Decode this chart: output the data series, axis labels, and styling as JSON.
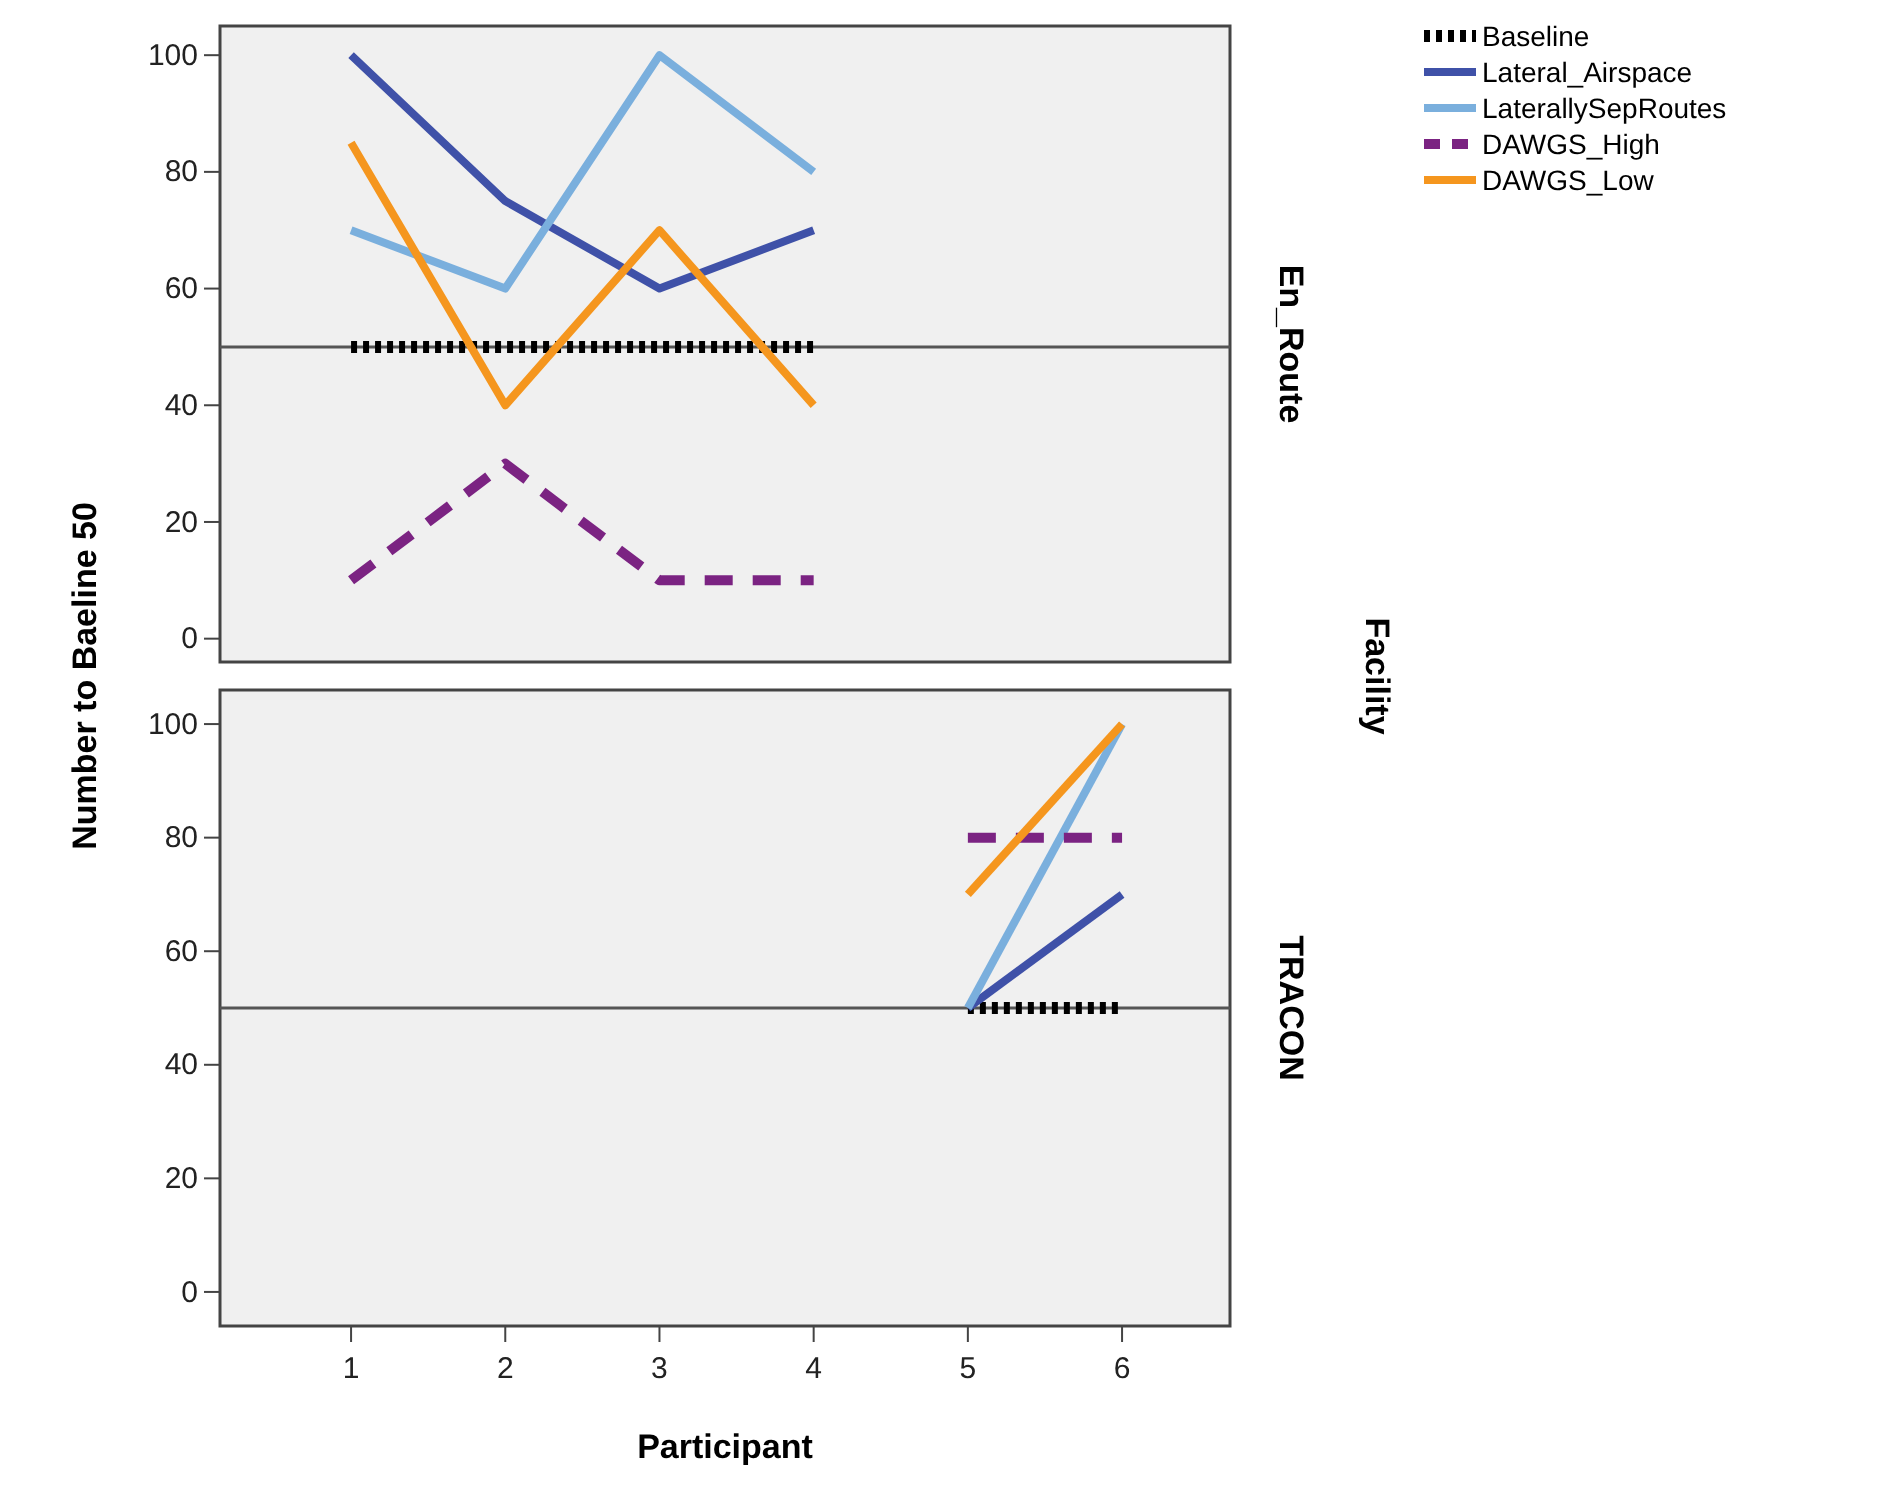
{
  "chart_data": [
    {
      "type": "line",
      "ylabel": "Number to Baeline 50",
      "annotations": [
        "En_Route",
        "Facility"
      ],
      "x": [
        1,
        2,
        3,
        4
      ],
      "xlim": [
        0.15,
        6.7
      ],
      "ylim": [
        -4,
        105
      ],
      "yticks": [
        0,
        20,
        40,
        60,
        80,
        100
      ],
      "tick_labels": "y",
      "legend": "right",
      "grid": false,
      "ref_lines": [
        {
          "axis": "y",
          "value": 50,
          "color": "#555555"
        }
      ],
      "series": [
        {
          "name": "Baseline",
          "color": "#000000",
          "line_style": "dotted",
          "values": [
            50,
            50,
            50,
            50
          ]
        },
        {
          "name": "Lateral_Airspace",
          "color": "#3f51a8",
          "line_style": "solid",
          "values": [
            100,
            75,
            60,
            70
          ]
        },
        {
          "name": "LaterallySepRoutes",
          "color": "#7aafdd",
          "line_style": "solid",
          "values": [
            70,
            60,
            100,
            80
          ]
        },
        {
          "name": "DAWGS_High",
          "color": "#7b2382",
          "line_style": "dashed",
          "values": [
            10,
            30,
            10,
            10
          ]
        },
        {
          "name": "DAWGS_Low",
          "color": "#f5961e",
          "line_style": "solid",
          "values": [
            85,
            40,
            70,
            40
          ]
        }
      ]
    },
    {
      "type": "line",
      "annotations": [
        "TRACON"
      ],
      "xlabel": "Participant",
      "x": [
        5,
        6
      ],
      "xlim": [
        0.15,
        6.7
      ],
      "xticks": [
        1,
        2,
        3,
        4,
        5,
        6
      ],
      "ylim": [
        -6,
        106
      ],
      "yticks": [
        0,
        20,
        40,
        60,
        80,
        100
      ],
      "legend": false,
      "grid": false,
      "ref_lines": [
        {
          "axis": "y",
          "value": 50,
          "color": "#555555"
        }
      ],
      "series": [
        {
          "color": "#000000",
          "line_style": "dotted",
          "values": [
            50,
            50
          ]
        },
        {
          "color": "#3f51a8",
          "line_style": "solid",
          "values": [
            50,
            70
          ]
        },
        {
          "color": "#7aafdd",
          "line_style": "solid",
          "values": [
            50,
            100
          ]
        },
        {
          "color": "#7b2382",
          "line_style": "dashed",
          "values": [
            80,
            80
          ]
        },
        {
          "color": "#f5961e",
          "line_style": "solid",
          "values": [
            70,
            100
          ]
        }
      ]
    }
  ]
}
